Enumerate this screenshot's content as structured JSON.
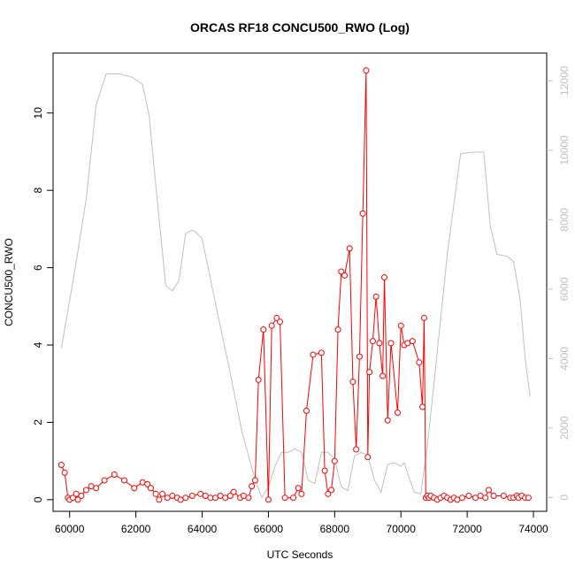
{
  "chart_data": {
    "type": "line",
    "title": "ORCAS RF18 CONCU500_RWO (Log)",
    "xlabel": "UTC Seconds",
    "ylabel": "CONCU500_RWO",
    "xlim": [
      59500,
      74400
    ],
    "ylim": [
      -0.3,
      11.55
    ],
    "y2lim": [
      -400,
      12800
    ],
    "x_ticks": [
      "60000",
      "62000",
      "64000",
      "66000",
      "68000",
      "70000",
      "72000",
      "74000"
    ],
    "y_ticks": [
      "0",
      "2",
      "4",
      "6",
      "8",
      "10"
    ],
    "y2_ticks": [
      "0",
      "2000",
      "4000",
      "6000",
      "8000",
      "10000",
      "12000"
    ],
    "colors": {
      "primary": "#ff0000",
      "secondary": "#c0c0c0",
      "axis": "#000000"
    },
    "series": [
      {
        "role": "primary",
        "x": [
          59750,
          59850,
          59950,
          60000,
          60100,
          60200,
          60250,
          60350,
          60500,
          60650,
          60800,
          61050,
          61350,
          61650,
          61950,
          62200,
          62350,
          62450,
          62600,
          62700,
          62800,
          62950,
          63100,
          63250,
          63350,
          63500,
          63700,
          63950,
          64100,
          64250,
          64400,
          64550,
          64700,
          64850,
          64950,
          65150,
          65250,
          65400,
          65500,
          65600,
          65700,
          65850,
          66000,
          66100,
          66250,
          66350,
          66500,
          66750,
          66900,
          67000,
          67150,
          67350,
          67600,
          67700,
          67800,
          67900,
          68000,
          68100,
          68200,
          68300,
          68450,
          68550,
          68650,
          68750,
          68850,
          68950,
          69000,
          69050,
          69150,
          69250,
          69350,
          69450,
          69500,
          69600,
          69700,
          69900,
          70000,
          70100,
          70200,
          70350,
          70550,
          70650,
          70700,
          70750,
          70800,
          70850,
          70900,
          71000,
          71100,
          71200,
          71300,
          71400,
          71500,
          71600,
          71700,
          71850,
          72050,
          72250,
          72400,
          72550,
          72650,
          72800,
          73100,
          73300,
          73400,
          73500,
          73550,
          73650,
          73750,
          73850
        ],
        "values": [
          0.9,
          0.7,
          0.05,
          0.0,
          0.05,
          0.15,
          0.0,
          0.1,
          0.25,
          0.35,
          0.3,
          0.5,
          0.65,
          0.5,
          0.3,
          0.45,
          0.4,
          0.3,
          0.15,
          0.0,
          0.15,
          0.05,
          0.1,
          0.05,
          0.0,
          0.05,
          0.1,
          0.15,
          0.1,
          0.05,
          0.05,
          0.1,
          0.05,
          0.1,
          0.2,
          0.05,
          0.1,
          0.05,
          0.35,
          0.5,
          3.1,
          4.4,
          0.0,
          4.5,
          4.7,
          4.6,
          0.05,
          0.05,
          0.3,
          0.15,
          2.3,
          3.75,
          3.8,
          0.75,
          0.15,
          0.25,
          1.0,
          4.4,
          5.9,
          5.8,
          6.5,
          3.05,
          1.3,
          3.7,
          7.4,
          11.1,
          1.1,
          3.3,
          4.1,
          5.25,
          4.05,
          3.2,
          5.75,
          2.05,
          4.05,
          2.25,
          4.5,
          4.0,
          4.05,
          4.1,
          3.55,
          2.4,
          4.7,
          0.05,
          0.1,
          0.05,
          0.1,
          0.05,
          0.0,
          0.05,
          0.1,
          0.05,
          0.0,
          0.05,
          0.0,
          0.05,
          0.1,
          0.05,
          0.1,
          0.05,
          0.25,
          0.1,
          0.1,
          0.05,
          0.05,
          0.1,
          0.05,
          0.1,
          0.05,
          0.05
        ]
      },
      {
        "role": "secondary",
        "x": [
          59750,
          60150,
          60500,
          60800,
          61100,
          61500,
          61900,
          62200,
          62400,
          62600,
          62900,
          63100,
          63300,
          63500,
          63700,
          63800,
          64000,
          64400,
          64800,
          65200,
          65600,
          65800,
          66000,
          66200,
          66400,
          66600,
          66800,
          67000,
          67200,
          67400,
          67600,
          67800,
          68000,
          68200,
          68400,
          68600,
          68800,
          69000,
          69200,
          69400,
          69600,
          69800,
          70000,
          70100,
          70200,
          70400,
          70600,
          70800,
          71000,
          71400,
          71800,
          72200,
          72500,
          72700,
          72900,
          73200,
          73400,
          73600,
          73750,
          73900
        ],
        "values": [
          4300,
          6500,
          8600,
          11300,
          12200,
          12200,
          12100,
          11900,
          11000,
          9000,
          6100,
          5950,
          6250,
          7600,
          7700,
          7650,
          7450,
          5600,
          3800,
          1900,
          500,
          0,
          300,
          900,
          1300,
          1300,
          1400,
          1300,
          500,
          400,
          1300,
          1300,
          1100,
          300,
          200,
          1200,
          1300,
          1200,
          500,
          150,
          950,
          1000,
          900,
          1000,
          700,
          150,
          100,
          1500,
          3300,
          7000,
          9900,
          9950,
          9950,
          7800,
          7000,
          6950,
          6800,
          5700,
          4000,
          2900
        ]
      }
    ]
  }
}
